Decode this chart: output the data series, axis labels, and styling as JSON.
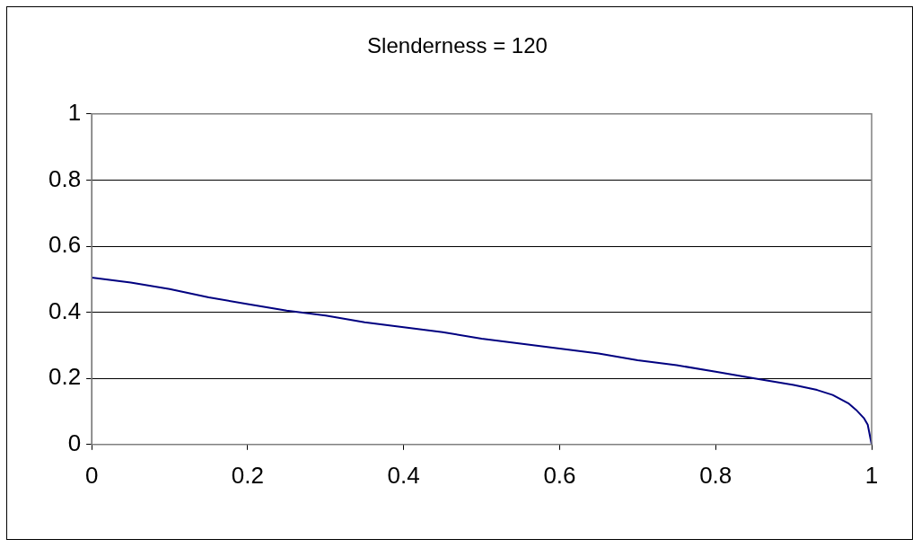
{
  "chart_data": {
    "type": "line",
    "title": "Slenderness = 120",
    "x": [
      0,
      0.05,
      0.1,
      0.15,
      0.2,
      0.25,
      0.3,
      0.35,
      0.4,
      0.45,
      0.5,
      0.55,
      0.6,
      0.65,
      0.7,
      0.75,
      0.8,
      0.85,
      0.9,
      0.93,
      0.95,
      0.97,
      0.98,
      0.99,
      0.995,
      1
    ],
    "series": [
      {
        "color": "#000080",
        "values": [
          0.505,
          0.49,
          0.47,
          0.445,
          0.425,
          0.405,
          0.39,
          0.37,
          0.355,
          0.34,
          0.32,
          0.305,
          0.29,
          0.275,
          0.255,
          0.24,
          0.22,
          0.2,
          0.18,
          0.165,
          0.15,
          0.125,
          0.105,
          0.08,
          0.06,
          0
        ]
      }
    ],
    "xlim": [
      0,
      1
    ],
    "xticks": [
      0,
      0.2,
      0.4,
      0.6,
      0.8,
      1
    ],
    "ylim": [
      0,
      1
    ],
    "yticks": [
      0,
      0.2,
      0.4,
      0.6,
      0.8,
      1
    ],
    "grid": "y",
    "legend": false,
    "marker": "none",
    "line_style": "solid"
  }
}
